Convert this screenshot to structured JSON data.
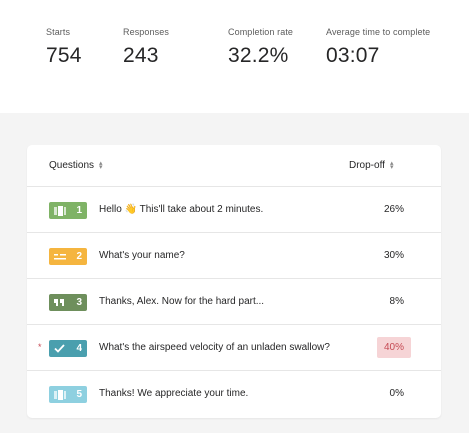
{
  "stats": [
    {
      "label": "Starts",
      "value": "754"
    },
    {
      "label": "Responses",
      "value": "243"
    },
    {
      "label": "Completion rate",
      "value": "32.2%"
    },
    {
      "label": "Average time to complete",
      "value": "03:07"
    }
  ],
  "table": {
    "col_questions": "Questions",
    "col_dropoff": "Drop-off",
    "rows": [
      {
        "number": "1",
        "text": "Hello 👋  This'll take about 2 minutes.",
        "dropoff": "26%",
        "color": "#7fb366",
        "icon": "welcome-screen-icon"
      },
      {
        "number": "2",
        "text": "What's your name?",
        "dropoff": "30%",
        "color": "#f5b53f",
        "icon": "short-text-icon"
      },
      {
        "number": "3",
        "text": "Thanks, Alex. Now for the hard part...",
        "dropoff": "8%",
        "color": "#6e8f5c",
        "icon": "statement-quote-icon"
      },
      {
        "number": "4",
        "text": "What's the airspeed velocity of an unladen swallow?",
        "dropoff": "40%",
        "color": "#4a9fae",
        "icon": "checkmark-icon",
        "required_mark": "*"
      },
      {
        "number": "5",
        "text": "Thanks! We appreciate your time.",
        "dropoff": "0%",
        "color": "#8ed0e0",
        "icon": "thank-you-screen-icon"
      }
    ]
  },
  "colors": {
    "highlight_bg": "#f6d4d6",
    "highlight_text": "#c64a54"
  }
}
